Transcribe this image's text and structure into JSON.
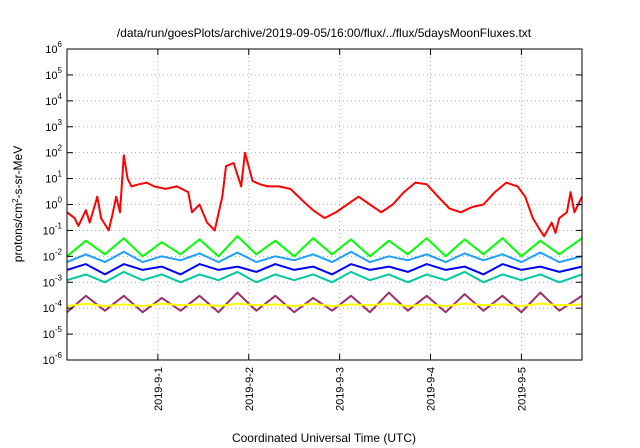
{
  "chart_data": {
    "type": "line",
    "title": "/data/run/goesPlots/archive/2019-09-05/16:00/flux/../flux/5daysMoonFluxes.txt",
    "xlabel": "Coordinated Universal Time (UTC)",
    "ylabel": {
      "parts": [
        {
          "text": "protons/cm",
          "sup": false
        },
        {
          "text": "2",
          "sup": true
        },
        {
          "text": "-s-sr-MeV",
          "sup": false
        }
      ]
    },
    "x_axis": {
      "type": "time",
      "range": [
        "2019-08-31 00:00",
        "2019-09-05 16:00"
      ],
      "tick_dates": [
        "2019-09-01 00:00",
        "2019-09-02 00:00",
        "2019-09-03 00:00",
        "2019-09-04 00:00",
        "2019-09-05 00:00"
      ],
      "tick_labels": [
        "2019-9-1",
        "2019-9-2",
        "2019-9-3",
        "2019-9-4",
        "2019-9-5"
      ],
      "tick_label_orientation": "vertical"
    },
    "y_axis": {
      "scale": "log",
      "range": [
        1e-06,
        1000000.0
      ],
      "ticks": [
        {
          "value": 1e-06,
          "base": "10",
          "exp": "-6"
        },
        {
          "value": 1e-05,
          "base": "10",
          "exp": "-5"
        },
        {
          "value": 0.0001,
          "base": "10",
          "exp": "-4"
        },
        {
          "value": 0.001,
          "base": "10",
          "exp": "-3"
        },
        {
          "value": 0.01,
          "base": "10",
          "exp": "-2"
        },
        {
          "value": 0.1,
          "base": "10",
          "exp": "-1"
        },
        {
          "value": 1.0,
          "base": "10",
          "exp": "0"
        },
        {
          "value": 10.0,
          "base": "10",
          "exp": "1"
        },
        {
          "value": 100.0,
          "base": "10",
          "exp": "2"
        },
        {
          "value": 1000.0,
          "base": "10",
          "exp": "3"
        },
        {
          "value": 10000.0,
          "base": "10",
          "exp": "4"
        },
        {
          "value": 100000.0,
          "base": "10",
          "exp": "5"
        },
        {
          "value": 1000000.0,
          "base": "10",
          "exp": "6"
        }
      ]
    },
    "grid": true,
    "legend": "none",
    "series": [
      {
        "color": "#ff0000",
        "x": [
          "2019-08-31 00:00",
          "2019-08-31 02:00",
          "2019-08-31 03:00",
          "2019-08-31 05:00",
          "2019-08-31 06:00",
          "2019-08-31 08:00",
          "2019-08-31 09:00",
          "2019-08-31 11:00",
          "2019-08-31 12:00",
          "2019-08-31 13:00",
          "2019-08-31 14:00",
          "2019-08-31 15:00",
          "2019-08-31 16:00",
          "2019-08-31 17:00",
          "2019-08-31 19:00",
          "2019-08-31 21:00",
          "2019-08-31 23:00",
          "2019-09-01 02:00",
          "2019-09-01 05:00",
          "2019-09-01 08:00",
          "2019-09-01 09:00",
          "2019-09-01 11:00",
          "2019-09-01 13:00",
          "2019-09-01 15:00",
          "2019-09-01 17:00",
          "2019-09-01 18:00",
          "2019-09-01 20:00",
          "2019-09-01 22:00",
          "2019-09-01 23:00",
          "2019-09-02 01:00",
          "2019-09-02 03:00",
          "2019-09-02 05:00",
          "2019-09-02 08:00",
          "2019-09-02 11:00",
          "2019-09-02 14:00",
          "2019-09-02 17:00",
          "2019-09-02 20:00",
          "2019-09-02 23:00",
          "2019-09-03 02:00",
          "2019-09-03 05:00",
          "2019-09-03 08:00",
          "2019-09-03 11:00",
          "2019-09-03 14:00",
          "2019-09-03 17:00",
          "2019-09-03 20:00",
          "2019-09-03 23:00",
          "2019-09-04 02:00",
          "2019-09-04 05:00",
          "2019-09-04 08:00",
          "2019-09-04 11:00",
          "2019-09-04 14:00",
          "2019-09-04 17:00",
          "2019-09-04 20:00",
          "2019-09-04 23:00",
          "2019-09-05 01:00",
          "2019-09-05 03:00",
          "2019-09-05 05:00",
          "2019-09-05 06:00",
          "2019-09-05 08:00",
          "2019-09-05 09:00",
          "2019-09-05 10:00",
          "2019-09-05 12:00",
          "2019-09-05 13:00",
          "2019-09-05 14:00",
          "2019-09-05 16:00"
        ],
        "y": [
          0.5,
          0.3,
          0.15,
          0.6,
          0.2,
          2,
          0.3,
          0.1,
          0.4,
          2,
          0.5,
          80,
          10,
          5,
          6,
          7,
          5,
          4,
          5,
          3,
          0.5,
          1,
          0.2,
          0.1,
          2,
          30,
          40,
          5,
          100,
          8,
          6,
          5,
          5,
          4,
          1.5,
          0.6,
          0.3,
          0.5,
          1,
          2,
          1,
          0.5,
          1,
          3,
          7,
          6,
          2,
          0.7,
          0.5,
          0.8,
          1,
          3,
          7,
          5,
          2,
          0.3,
          0.1,
          0.06,
          0.2,
          0.08,
          0.3,
          0.5,
          3,
          0.5,
          2
        ]
      },
      {
        "color": "#00ff00",
        "x": [
          "2019-08-31 00:00",
          "2019-08-31 05:00",
          "2019-08-31 10:00",
          "2019-08-31 15:00",
          "2019-08-31 20:00",
          "2019-09-01 01:00",
          "2019-09-01 06:00",
          "2019-09-01 11:00",
          "2019-09-01 16:00",
          "2019-09-01 21:00",
          "2019-09-02 02:00",
          "2019-09-02 07:00",
          "2019-09-02 12:00",
          "2019-09-02 17:00",
          "2019-09-02 22:00",
          "2019-09-03 03:00",
          "2019-09-03 08:00",
          "2019-09-03 13:00",
          "2019-09-03 18:00",
          "2019-09-03 23:00",
          "2019-09-04 04:00",
          "2019-09-04 09:00",
          "2019-09-04 14:00",
          "2019-09-04 19:00",
          "2019-09-05 00:00",
          "2019-09-05 05:00",
          "2019-09-05 10:00",
          "2019-09-05 16:00"
        ],
        "y": [
          0.01,
          0.04,
          0.012,
          0.05,
          0.01,
          0.035,
          0.012,
          0.045,
          0.01,
          0.06,
          0.012,
          0.04,
          0.01,
          0.05,
          0.012,
          0.045,
          0.01,
          0.04,
          0.012,
          0.05,
          0.01,
          0.045,
          0.012,
          0.05,
          0.01,
          0.04,
          0.012,
          0.05
        ]
      },
      {
        "color": "#1f9fff",
        "x": [
          "2019-08-31 00:00",
          "2019-08-31 05:00",
          "2019-08-31 10:00",
          "2019-08-31 15:00",
          "2019-08-31 20:00",
          "2019-09-01 01:00",
          "2019-09-01 06:00",
          "2019-09-01 11:00",
          "2019-09-01 16:00",
          "2019-09-01 21:00",
          "2019-09-02 02:00",
          "2019-09-02 07:00",
          "2019-09-02 12:00",
          "2019-09-02 17:00",
          "2019-09-02 22:00",
          "2019-09-03 03:00",
          "2019-09-03 08:00",
          "2019-09-03 13:00",
          "2019-09-03 18:00",
          "2019-09-03 23:00",
          "2019-09-04 04:00",
          "2019-09-04 09:00",
          "2019-09-04 14:00",
          "2019-09-04 19:00",
          "2019-09-05 00:00",
          "2019-09-05 05:00",
          "2019-09-05 10:00",
          "2019-09-05 16:00"
        ],
        "y": [
          0.006,
          0.012,
          0.006,
          0.015,
          0.006,
          0.01,
          0.007,
          0.013,
          0.006,
          0.014,
          0.006,
          0.01,
          0.007,
          0.012,
          0.006,
          0.015,
          0.006,
          0.01,
          0.007,
          0.012,
          0.006,
          0.013,
          0.007,
          0.012,
          0.006,
          0.014,
          0.006,
          0.01
        ]
      },
      {
        "color": "#0000ff",
        "x": [
          "2019-08-31 00:00",
          "2019-08-31 05:00",
          "2019-08-31 10:00",
          "2019-08-31 15:00",
          "2019-08-31 20:00",
          "2019-09-01 01:00",
          "2019-09-01 06:00",
          "2019-09-01 11:00",
          "2019-09-01 16:00",
          "2019-09-01 21:00",
          "2019-09-02 02:00",
          "2019-09-02 07:00",
          "2019-09-02 12:00",
          "2019-09-02 17:00",
          "2019-09-02 22:00",
          "2019-09-03 03:00",
          "2019-09-03 08:00",
          "2019-09-03 13:00",
          "2019-09-03 18:00",
          "2019-09-03 23:00",
          "2019-09-04 04:00",
          "2019-09-04 09:00",
          "2019-09-04 14:00",
          "2019-09-04 19:00",
          "2019-09-05 00:00",
          "2019-09-05 05:00",
          "2019-09-05 10:00",
          "2019-09-05 16:00"
        ],
        "y": [
          0.003,
          0.005,
          0.002,
          0.005,
          0.003,
          0.004,
          0.002,
          0.005,
          0.003,
          0.004,
          0.0025,
          0.005,
          0.003,
          0.004,
          0.002,
          0.005,
          0.003,
          0.004,
          0.0025,
          0.005,
          0.003,
          0.004,
          0.002,
          0.005,
          0.003,
          0.004,
          0.0025,
          0.004
        ]
      },
      {
        "color": "#00c8a0",
        "x": [
          "2019-08-31 00:00",
          "2019-08-31 05:00",
          "2019-08-31 10:00",
          "2019-08-31 15:00",
          "2019-08-31 20:00",
          "2019-09-01 01:00",
          "2019-09-01 06:00",
          "2019-09-01 11:00",
          "2019-09-01 16:00",
          "2019-09-01 21:00",
          "2019-09-02 02:00",
          "2019-09-02 07:00",
          "2019-09-02 12:00",
          "2019-09-02 17:00",
          "2019-09-02 22:00",
          "2019-09-03 03:00",
          "2019-09-03 08:00",
          "2019-09-03 13:00",
          "2019-09-03 18:00",
          "2019-09-03 23:00",
          "2019-09-04 04:00",
          "2019-09-04 09:00",
          "2019-09-04 14:00",
          "2019-09-04 19:00",
          "2019-09-05 00:00",
          "2019-09-05 05:00",
          "2019-09-05 10:00",
          "2019-09-05 16:00"
        ],
        "y": [
          0.0012,
          0.002,
          0.001,
          0.0025,
          0.0012,
          0.002,
          0.001,
          0.002,
          0.0012,
          0.0025,
          0.001,
          0.002,
          0.0012,
          0.002,
          0.001,
          0.0025,
          0.0012,
          0.002,
          0.001,
          0.002,
          0.0012,
          0.0025,
          0.001,
          0.002,
          0.0012,
          0.002,
          0.001,
          0.002
        ]
      },
      {
        "color": "#ffff00",
        "x": [
          "2019-08-31 00:00",
          "2019-08-31 05:00",
          "2019-08-31 10:00",
          "2019-08-31 15:00",
          "2019-08-31 20:00",
          "2019-09-01 01:00",
          "2019-09-01 06:00",
          "2019-09-01 11:00",
          "2019-09-01 16:00",
          "2019-09-01 21:00",
          "2019-09-02 02:00",
          "2019-09-02 07:00",
          "2019-09-02 12:00",
          "2019-09-02 17:00",
          "2019-09-02 22:00",
          "2019-09-03 03:00",
          "2019-09-03 08:00",
          "2019-09-03 13:00",
          "2019-09-03 18:00",
          "2019-09-03 23:00",
          "2019-09-04 04:00",
          "2019-09-04 09:00",
          "2019-09-04 14:00",
          "2019-09-04 19:00",
          "2019-09-05 00:00",
          "2019-09-05 05:00",
          "2019-09-05 10:00",
          "2019-09-05 16:00"
        ],
        "y": [
          0.00012,
          0.00015,
          0.00012,
          0.00014,
          0.00012,
          0.00015,
          0.00013,
          0.00014,
          0.00012,
          0.00015,
          0.00013,
          0.00014,
          0.00012,
          0.00015,
          0.00012,
          0.00014,
          0.00013,
          0.00015,
          0.00012,
          0.00014,
          0.00012,
          0.00015,
          0.00013,
          0.00014,
          0.00012,
          0.00015,
          0.00013,
          0.00014
        ]
      },
      {
        "color": "#9b2f6e",
        "x": [
          "2019-08-31 00:00",
          "2019-08-31 05:00",
          "2019-08-31 10:00",
          "2019-08-31 15:00",
          "2019-08-31 20:00",
          "2019-09-01 01:00",
          "2019-09-01 06:00",
          "2019-09-01 11:00",
          "2019-09-01 16:00",
          "2019-09-01 21:00",
          "2019-09-02 02:00",
          "2019-09-02 07:00",
          "2019-09-02 12:00",
          "2019-09-02 17:00",
          "2019-09-02 22:00",
          "2019-09-03 03:00",
          "2019-09-03 08:00",
          "2019-09-03 13:00",
          "2019-09-03 18:00",
          "2019-09-03 23:00",
          "2019-09-04 04:00",
          "2019-09-04 09:00",
          "2019-09-04 14:00",
          "2019-09-04 19:00",
          "2019-09-05 00:00",
          "2019-09-05 05:00",
          "2019-09-05 10:00",
          "2019-09-05 16:00"
        ],
        "y": [
          7e-05,
          0.0003,
          8e-05,
          0.0003,
          7e-05,
          0.00025,
          8e-05,
          0.0003,
          7e-05,
          0.0004,
          8e-05,
          0.0003,
          7e-05,
          0.00025,
          8e-05,
          0.0003,
          7e-05,
          0.0004,
          8e-05,
          0.0003,
          7e-05,
          0.00035,
          8e-05,
          0.0003,
          7e-05,
          0.0004,
          8e-05,
          0.0003
        ]
      }
    ]
  }
}
